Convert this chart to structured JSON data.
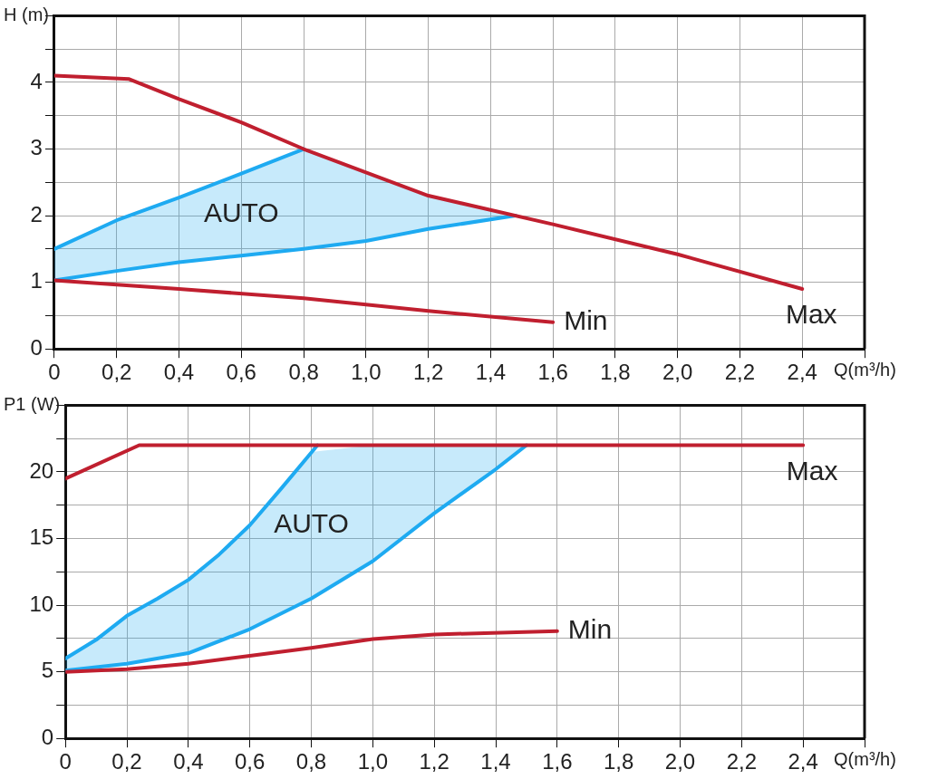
{
  "chart_data": [
    {
      "type": "line",
      "ylabel": "H (m)",
      "xlabel": "Q(m³/h)",
      "xlim": [
        0,
        2.6
      ],
      "ylim": [
        0,
        5
      ],
      "xticks": [
        0,
        {
          "value": 0.2,
          "label": "0,2"
        },
        {
          "value": 0.4,
          "label": "0,4"
        },
        {
          "value": 0.6,
          "label": "0,6"
        },
        {
          "value": 0.8,
          "label": "0,8"
        },
        {
          "value": 1.0,
          "label": "1,0"
        },
        {
          "value": 1.2,
          "label": "1,2"
        },
        {
          "value": 1.4,
          "label": "1,4"
        },
        {
          "value": 1.6,
          "label": "1,6"
        },
        {
          "value": 1.8,
          "label": "1,8"
        },
        {
          "value": 2.0,
          "label": "2,0"
        },
        {
          "value": 2.2,
          "label": "2,2"
        },
        {
          "value": 2.4,
          "label": "2,4"
        },
        {
          "value": 2.6,
          "label": null
        }
      ],
      "yticks": [
        0,
        {
          "value": 0.5,
          "label": null
        },
        1,
        {
          "value": 1.5,
          "label": null
        },
        2,
        {
          "value": 2.5,
          "label": null
        },
        3,
        {
          "value": 3.5,
          "label": null
        },
        4,
        {
          "value": 4.5,
          "label": null
        },
        {
          "value": 5,
          "label": null
        }
      ],
      "grid": true,
      "line_style": "solid",
      "series": [
        {
          "name": "Max",
          "color": "#c01f2f",
          "x": [
            0,
            0.24,
            0.4,
            0.6,
            0.8,
            1.2,
            1.6,
            2.0,
            2.4
          ],
          "values": [
            4.1,
            4.05,
            3.75,
            3.4,
            3.0,
            2.3,
            1.87,
            1.42,
            0.9
          ]
        },
        {
          "name": "Min",
          "color": "#c01f2f",
          "x": [
            0,
            0.4,
            0.8,
            1.2,
            1.6
          ],
          "values": [
            1.03,
            0.9,
            0.76,
            0.57,
            0.4
          ]
        },
        {
          "color": "#1eaaf1",
          "x": [
            0,
            0.2,
            0.4,
            0.6,
            0.8
          ],
          "values": [
            1.5,
            1.93,
            2.27,
            2.63,
            3.0
          ]
        },
        {
          "name": "AUTO",
          "color": "#1eaaf1",
          "x": [
            0,
            0.2,
            0.4,
            0.6,
            0.8,
            1.0,
            1.2,
            1.48
          ],
          "values": [
            1.03,
            1.17,
            1.3,
            1.4,
            1.5,
            1.62,
            1.8,
            2.0
          ],
          "lower": [
            1.03,
            1.17,
            1.3,
            1.4,
            1.5,
            1.62,
            1.8,
            2.0
          ],
          "upper": [
            1.5,
            1.93,
            2.27,
            2.63,
            3.0,
            2.65,
            2.3,
            2.0
          ]
        }
      ],
      "legend": false
    },
    {
      "type": "line",
      "ylabel": "P1 (W)",
      "xlabel": "Q(m³/h)",
      "xlim": [
        0,
        2.6
      ],
      "ylim": [
        0,
        25
      ],
      "xticks": [
        0,
        {
          "value": 0.2,
          "label": "0,2"
        },
        {
          "value": 0.4,
          "label": "0,4"
        },
        {
          "value": 0.6,
          "label": "0,6"
        },
        {
          "value": 0.8,
          "label": "0,8"
        },
        {
          "value": 1.0,
          "label": "1,0"
        },
        {
          "value": 1.2,
          "label": "1,2"
        },
        {
          "value": 1.4,
          "label": "1,4"
        },
        {
          "value": 1.6,
          "label": "1,6"
        },
        {
          "value": 1.8,
          "label": "1,8"
        },
        {
          "value": 2.0,
          "label": "2,0"
        },
        {
          "value": 2.2,
          "label": "2,2"
        },
        {
          "value": 2.4,
          "label": "2,4"
        },
        {
          "value": 2.6,
          "label": null
        }
      ],
      "yticks": [
        0,
        {
          "value": 2.5,
          "label": null
        },
        5,
        {
          "value": 7.5,
          "label": null
        },
        10,
        {
          "value": 12.5,
          "label": null
        },
        15,
        {
          "value": 17.5,
          "label": null
        },
        20,
        {
          "value": 22.5,
          "label": null
        },
        {
          "value": 25,
          "label": null
        }
      ],
      "grid": true,
      "line_style": "solid",
      "series": [
        {
          "name": "Max",
          "color": "#c01f2f",
          "x": [
            0,
            0.24,
            2.4
          ],
          "values": [
            19.5,
            22,
            22
          ]
        },
        {
          "name": "Min",
          "color": "#c01f2f",
          "x": [
            0,
            0.2,
            0.4,
            0.6,
            0.8,
            1.0,
            1.2,
            1.6
          ],
          "values": [
            5,
            5.2,
            5.6,
            6.2,
            6.8,
            7.45,
            7.8,
            8.05
          ]
        },
        {
          "color": "#1eaaf1",
          "x": [
            0,
            0.1,
            0.2,
            0.3,
            0.4,
            0.5,
            0.6,
            0.7,
            0.82
          ],
          "values": [
            6,
            7.4,
            9.2,
            10.5,
            11.9,
            13.8,
            16.0,
            18.7,
            22
          ]
        },
        {
          "name": "AUTO",
          "color": "#1eaaf1",
          "x": [
            0,
            0.2,
            0.4,
            0.6,
            0.8,
            1.0,
            1.2,
            1.4,
            1.5
          ],
          "values": [
            5.1,
            5.6,
            6.4,
            8.2,
            10.5,
            13.3,
            16.9,
            20.2,
            22
          ],
          "lower": [
            5.1,
            5.6,
            6.4,
            8.2,
            10.5,
            13.3,
            16.9,
            20.2,
            22
          ],
          "upper": [
            6,
            9.2,
            11.9,
            16,
            21.5,
            22,
            22,
            22,
            22
          ]
        }
      ],
      "legend": false
    }
  ]
}
